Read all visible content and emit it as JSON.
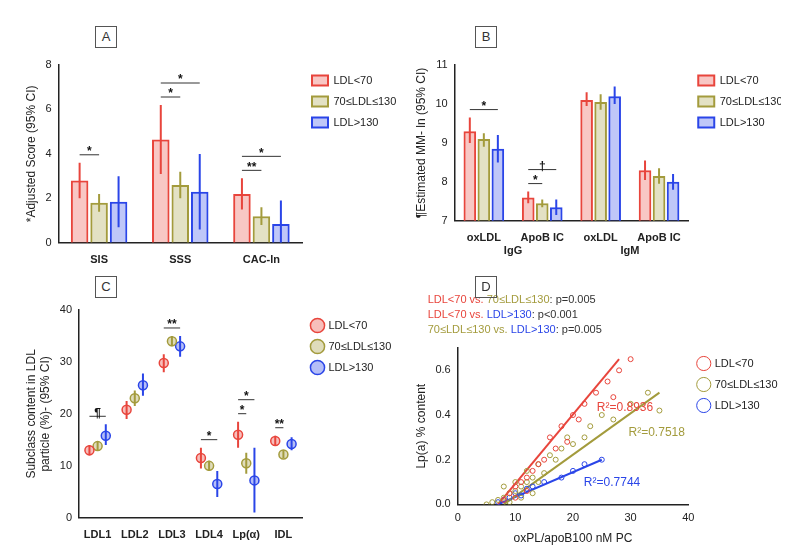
{
  "chart_data": [
    {
      "type": "bar",
      "panel": "A",
      "y_label": "*Adjusted Score (95% CI)",
      "categories": [
        "SIS",
        "SSS",
        "CAC-ln"
      ],
      "ylim": [
        0,
        8
      ],
      "yticks": [
        0,
        2,
        4,
        6,
        8
      ],
      "grid": false,
      "legend": "right",
      "series": [
        {
          "name": "LDL<70",
          "color": "#e8453c",
          "values": [
            2.8,
            4.65,
            2.2
          ],
          "ci_lower": [
            2.0,
            3.1,
            1.5
          ],
          "ci_upper": [
            3.6,
            6.2,
            2.9
          ]
        },
        {
          "name": "70≤LDL≤130",
          "color": "#a39b3c",
          "values": [
            1.8,
            2.6,
            1.2
          ],
          "ci_lower": [
            1.4,
            2.0,
            0.8
          ],
          "ci_upper": [
            2.2,
            3.2,
            1.6
          ]
        },
        {
          "name": "LDL>130",
          "color": "#2a45e8",
          "values": [
            1.85,
            2.3,
            0.85
          ],
          "ci_lower": [
            0.7,
            0.6,
            0
          ],
          "ci_upper": [
            3.0,
            4.0,
            1.9
          ]
        }
      ],
      "significance": [
        {
          "label": "*",
          "category": 0,
          "between": [
            "LDL<70",
            "70≤LDL≤130"
          ]
        },
        {
          "label": "*",
          "category": 1,
          "between": [
            "LDL<70",
            "70≤LDL≤130"
          ]
        },
        {
          "label": "*",
          "category": 1,
          "between": [
            "LDL<70",
            "LDL>130"
          ]
        },
        {
          "label": "**",
          "category": 2,
          "between": [
            "LDL<70",
            "70≤LDL≤130"
          ]
        },
        {
          "label": "*",
          "category": 2,
          "between": [
            "LDL<70",
            "LDL>130"
          ]
        }
      ]
    },
    {
      "type": "bar",
      "panel": "B",
      "y_label": "¶Estimated MM- ln (95% CI)",
      "categories": [
        "oxLDL",
        "ApoB IC",
        "oxLDL",
        "ApoB IC"
      ],
      "groups": [
        {
          "label": "IgG",
          "from": 0,
          "to": 1
        },
        {
          "label": "IgM",
          "from": 2,
          "to": 3
        }
      ],
      "ylim": [
        7,
        11
      ],
      "yticks": [
        7,
        8,
        9,
        10,
        11
      ],
      "grid": false,
      "legend": "right",
      "series": [
        {
          "name": "LDL<70",
          "color": "#e8453c",
          "values": [
            9.3,
            7.6,
            10.1,
            8.3
          ],
          "ci_lower": [
            9.0,
            7.45,
            9.95,
            8.05
          ],
          "ci_upper": [
            9.65,
            7.75,
            10.3,
            8.55
          ]
        },
        {
          "name": "70≤LDL≤130",
          "color": "#a39b3c",
          "values": [
            9.1,
            7.45,
            10.05,
            8.15
          ],
          "ci_lower": [
            8.9,
            7.35,
            9.85,
            7.95
          ],
          "ci_upper": [
            9.25,
            7.55,
            10.25,
            8.35
          ]
        },
        {
          "name": "LDL>130",
          "color": "#2a45e8",
          "values": [
            8.85,
            7.35,
            10.2,
            8.0
          ],
          "ci_lower": [
            8.5,
            7.15,
            10.0,
            7.8
          ],
          "ci_upper": [
            9.2,
            7.55,
            10.45,
            8.2
          ]
        }
      ],
      "significance": [
        {
          "label": "*",
          "category": 0,
          "between": [
            "LDL<70",
            "LDL>130"
          ]
        },
        {
          "label": "*",
          "category": 1,
          "between": [
            "LDL<70",
            "70≤LDL≤130"
          ]
        },
        {
          "label": "†",
          "category": 1,
          "between": [
            "LDL<70",
            "LDL>130"
          ]
        }
      ]
    },
    {
      "type": "dot",
      "panel": "C",
      "y_label": [
        "Subclass content in LDL",
        "particle (%)- (95% CI)"
      ],
      "categories": [
        "LDL1",
        "LDL2",
        "LDL3",
        "LDL4",
        "Lp(α)",
        "IDL"
      ],
      "ylim": [
        0,
        40
      ],
      "yticks": [
        0,
        10,
        20,
        30,
        40
      ],
      "grid": false,
      "legend": "right",
      "series": [
        {
          "name": "LDL<70",
          "color": "#e8453c",
          "values": [
            13,
            20.8,
            29.8,
            11.5,
            16,
            14.8
          ],
          "ci_lower": [
            12,
            19,
            28,
            9.5,
            13.5,
            13.8
          ],
          "ci_upper": [
            14,
            22.5,
            31.5,
            13.5,
            18.5,
            15.8
          ]
        },
        {
          "name": "70≤LDL≤130",
          "color": "#a39b3c",
          "values": [
            13.8,
            23,
            34,
            10,
            10.5,
            12.2
          ],
          "ci_lower": [
            13,
            21.5,
            33,
            9,
            8.5,
            11.5
          ],
          "ci_upper": [
            14.6,
            24.5,
            35,
            11,
            12.5,
            13
          ]
        },
        {
          "name": "LDL>130",
          "color": "#2a45e8",
          "values": [
            15.8,
            25.5,
            33,
            6.5,
            7.2,
            14.2
          ],
          "ci_lower": [
            14,
            23.5,
            31,
            4,
            1,
            13
          ],
          "ci_upper": [
            18,
            27.8,
            35,
            9,
            13.5,
            15.5
          ]
        }
      ],
      "significance": [
        {
          "label": "¶",
          "category": 0,
          "between": [
            "LDL<70",
            "LDL>130"
          ]
        },
        {
          "label": "**",
          "category": 2,
          "between": [
            "LDL<70",
            "LDL>130"
          ]
        },
        {
          "label": "*",
          "category": 3,
          "between": [
            "LDL<70",
            "LDL>130"
          ]
        },
        {
          "label": "*",
          "category": 4,
          "between": [
            "LDL<70",
            "70≤LDL≤130"
          ]
        },
        {
          "label": "*",
          "category": 4,
          "between": [
            "LDL<70",
            "LDL>130"
          ]
        },
        {
          "label": "**",
          "category": 5,
          "between": [
            "LDL<70",
            "70≤LDL≤130"
          ]
        }
      ]
    },
    {
      "type": "scatter",
      "panel": "D",
      "x_label": "oxPL/apoB100 nM PC",
      "y_label": "Lp(a) % content",
      "xlim": [
        0,
        40
      ],
      "xticks": [
        0,
        10,
        20,
        30,
        40
      ],
      "ylim": [
        0,
        0.7
      ],
      "yticks": [
        {
          "value": 0,
          "label": "0.0"
        },
        0.2,
        0.4,
        0.6
      ],
      "grid": false,
      "legend": "right",
      "annotations": [
        [
          {
            "text": "LDL<70 vs. ",
            "color": "#e8453c"
          },
          {
            "text": "70≤LDL≤130",
            "color": "#a39b3c"
          },
          {
            "text": ": p=0.005",
            "color": "#333333"
          }
        ],
        [
          {
            "text": "LDL<70 vs. ",
            "color": "#e8453c"
          },
          {
            "text": "LDL>130",
            "color": "#2a45e8"
          },
          {
            "text": ": p<0.001",
            "color": "#333333"
          }
        ],
        [
          {
            "text": "70≤LDL≤130 vs. ",
            "color": "#a39b3c"
          },
          {
            "text": "LDL>130",
            "color": "#2a45e8"
          },
          {
            "text": ": p=0.005",
            "color": "#333333"
          }
        ]
      ],
      "series": [
        {
          "name": "LDL<70",
          "color": "#e8453c",
          "annotation": "R²=0.8936",
          "x": [
            8,
            9,
            10,
            11,
            12,
            13,
            14,
            15,
            16,
            17,
            18,
            20,
            21,
            22,
            24,
            26,
            28,
            30,
            27,
            19,
            10,
            12
          ],
          "y": [
            0.02,
            0.05,
            0.08,
            0.1,
            0.12,
            0.15,
            0.18,
            0.2,
            0.3,
            0.25,
            0.35,
            0.4,
            0.38,
            0.45,
            0.5,
            0.55,
            0.6,
            0.65,
            0.48,
            0.28,
            0.03,
            0.06
          ],
          "fit": {
            "x": [
              7,
              28
            ],
            "y": [
              0,
              0.65
            ]
          }
        },
        {
          "name": "70≤LDL≤130",
          "color": "#a39b3c",
          "annotation": "R²=0.7518",
          "x": [
            5,
            6,
            7,
            8,
            9,
            10,
            10,
            11,
            12,
            12,
            13,
            14,
            15,
            16,
            17,
            18,
            19,
            20,
            22,
            23,
            25,
            27,
            30,
            33,
            35,
            9,
            11,
            13,
            8,
            14
          ],
          "y": [
            0,
            0.01,
            0.02,
            0.03,
            0.05,
            0.06,
            0.1,
            0.08,
            0.1,
            0.15,
            0.12,
            0.18,
            0.14,
            0.22,
            0.2,
            0.25,
            0.3,
            0.27,
            0.3,
            0.35,
            0.4,
            0.38,
            0.45,
            0.5,
            0.42,
            0.01,
            0.03,
            0.05,
            0.08,
            0.1
          ],
          "fit": {
            "x": [
              8,
              35
            ],
            "y": [
              0,
              0.5
            ]
          }
        },
        {
          "name": "LDL>130",
          "color": "#2a45e8",
          "annotation": "R²=0.7744",
          "x": [
            7,
            8,
            9,
            10,
            11,
            12,
            13,
            15,
            18,
            20,
            22,
            25
          ],
          "y": [
            0.01,
            0.02,
            0.03,
            0.05,
            0.04,
            0.07,
            0.08,
            0.1,
            0.12,
            0.15,
            0.18,
            0.2
          ],
          "fit": {
            "x": [
              7,
              25
            ],
            "y": [
              0,
              0.2
            ]
          }
        }
      ]
    }
  ]
}
